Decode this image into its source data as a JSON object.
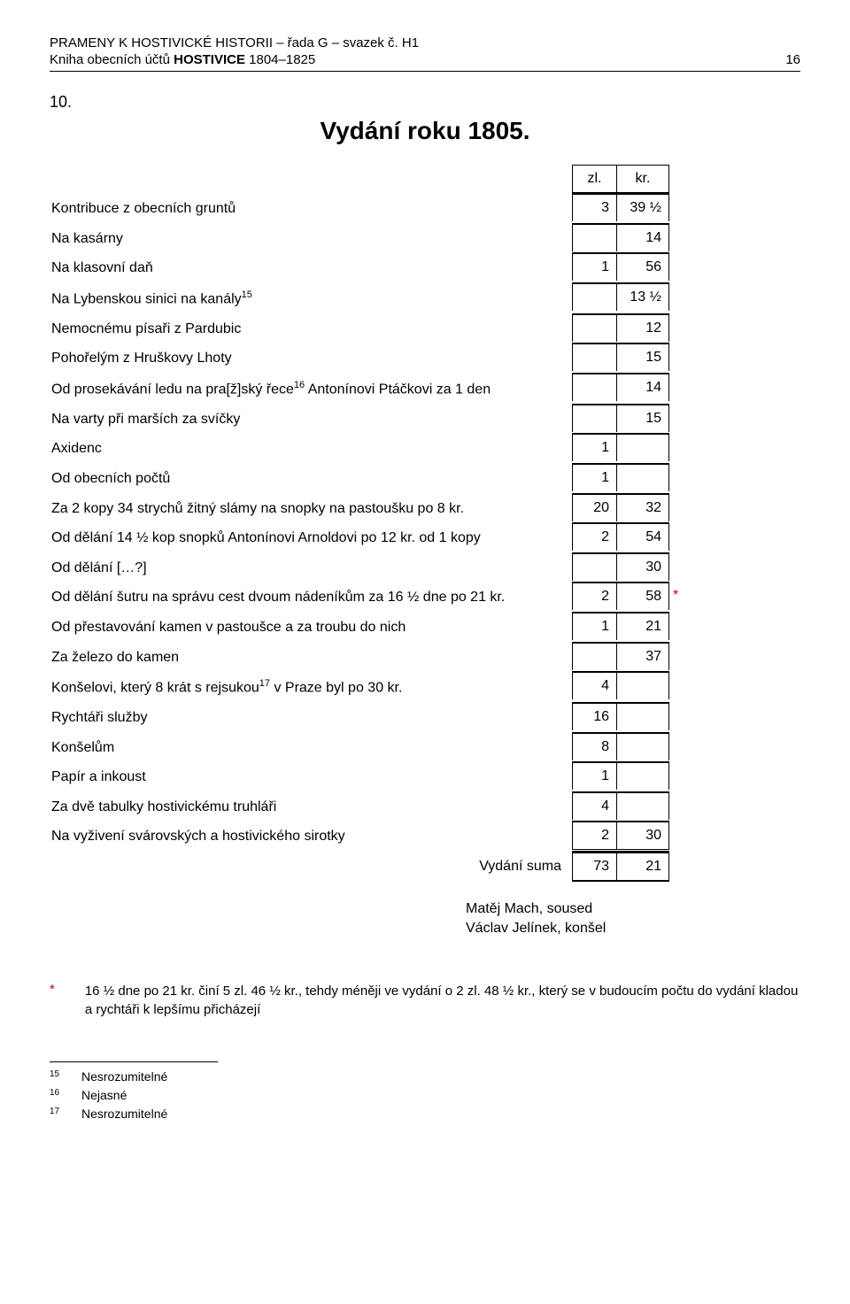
{
  "header": {
    "line1": "PRAMENY K HOSTIVICKÉ HISTORII – řada G – svazek č. H1",
    "line2_prefix": "Kniha obecních účtů ",
    "line2_bold": "HOSTIVICE",
    "line2_suffix": " 1804–1825",
    "page_no": "16"
  },
  "section_no": "10.",
  "title": "Vydání roku 1805.",
  "col_headers": {
    "zl": "zl.",
    "kr": "kr."
  },
  "rows": [
    {
      "label": "Kontribuce z obecních gruntů",
      "zl": "3",
      "kr": "39 ½",
      "mark": ""
    },
    {
      "label": "Na kasárny",
      "zl": "",
      "kr": "14",
      "mark": ""
    },
    {
      "label": "Na klasovní daň",
      "zl": "1",
      "kr": "56",
      "mark": ""
    },
    {
      "label": "Na Lybenskou sinici na kanály",
      "sup": "15",
      "zl": "",
      "kr": "13 ½",
      "mark": ""
    },
    {
      "label": "Nemocnému písaři z Pardubic",
      "zl": "",
      "kr": "12",
      "mark": ""
    },
    {
      "label": "Pohořelým z Hruškovy Lhoty",
      "zl": "",
      "kr": "15",
      "mark": ""
    },
    {
      "label_prefix": "Od prosekávání ledu na pra[ž]ský řece",
      "sup": "16",
      "label_suffix": " Antonínovi Ptáčkovi za 1 den",
      "zl": "",
      "kr": "14",
      "mark": ""
    },
    {
      "label": "Na varty při marších za svíčky",
      "zl": "",
      "kr": "15",
      "mark": ""
    },
    {
      "label": "Axidenc",
      "zl": "1",
      "kr": "",
      "mark": ""
    },
    {
      "label": "Od obecních počtů",
      "zl": "1",
      "kr": "",
      "mark": ""
    },
    {
      "label": "Za 2 kopy 34 strychů žitný slámy na snopky na pastoušku po 8 kr.",
      "zl": "20",
      "kr": "32",
      "mark": ""
    },
    {
      "label": "Od dělání 14 ½ kop snopků Antonínovi Arnoldovi po 12 kr. od 1 kopy",
      "zl": "2",
      "kr": "54",
      "mark": ""
    },
    {
      "label": "Od dělání […?]",
      "zl": "",
      "kr": "30",
      "mark": ""
    },
    {
      "label": "Od dělání šutru na správu cest dvoum nádeníkům za 16 ½ dne po 21 kr.",
      "zl": "2",
      "kr": "58",
      "mark": "*"
    },
    {
      "label": "Od přestavování kamen v pastoušce a za troubu do nich",
      "zl": "1",
      "kr": "21",
      "mark": ""
    },
    {
      "label": "Za železo do kamen",
      "zl": "",
      "kr": "37",
      "mark": ""
    },
    {
      "label_prefix": "Konšelovi, který 8 krát s rejsukou",
      "sup": "17",
      "label_suffix": " v Praze byl po 30 kr.",
      "zl": "4",
      "kr": "",
      "mark": ""
    },
    {
      "label": "Rychtáři služby",
      "zl": "16",
      "kr": "",
      "mark": ""
    },
    {
      "label": "Konšelům",
      "zl": "8",
      "kr": "",
      "mark": ""
    },
    {
      "label": "Papír a inkoust",
      "zl": "1",
      "kr": "",
      "mark": ""
    },
    {
      "label": "Za dvě tabulky hostivickému truhláři",
      "zl": "4",
      "kr": "",
      "mark": ""
    },
    {
      "label": "Na vyživení svárovských a hostivického sirotky",
      "zl": "2",
      "kr": "30",
      "mark": ""
    }
  ],
  "sum": {
    "label": "Vydání suma",
    "zl": "73",
    "kr": "21"
  },
  "signatures": [
    "Matěj Mach, soused",
    "Václav Jelínek, konšel"
  ],
  "footnote_star": {
    "mark": "*",
    "text": "16 ½ dne po 21 kr. činí 5 zl. 46 ½ kr., tehdy méněji ve vydání o 2 zl. 48 ½ kr., který se v budoucím počtu do vydání kladou a rychtáři k lepšímu přicházejí"
  },
  "footnotes": [
    {
      "n": "15",
      "t": "Nesrozumitelné"
    },
    {
      "n": "16",
      "t": "Nejasné"
    },
    {
      "n": "17",
      "t": "Nesrozumitelné"
    }
  ],
  "colors": {
    "text": "#000000",
    "accent_red": "#d00000",
    "background": "#ffffff",
    "rule": "#000000"
  }
}
